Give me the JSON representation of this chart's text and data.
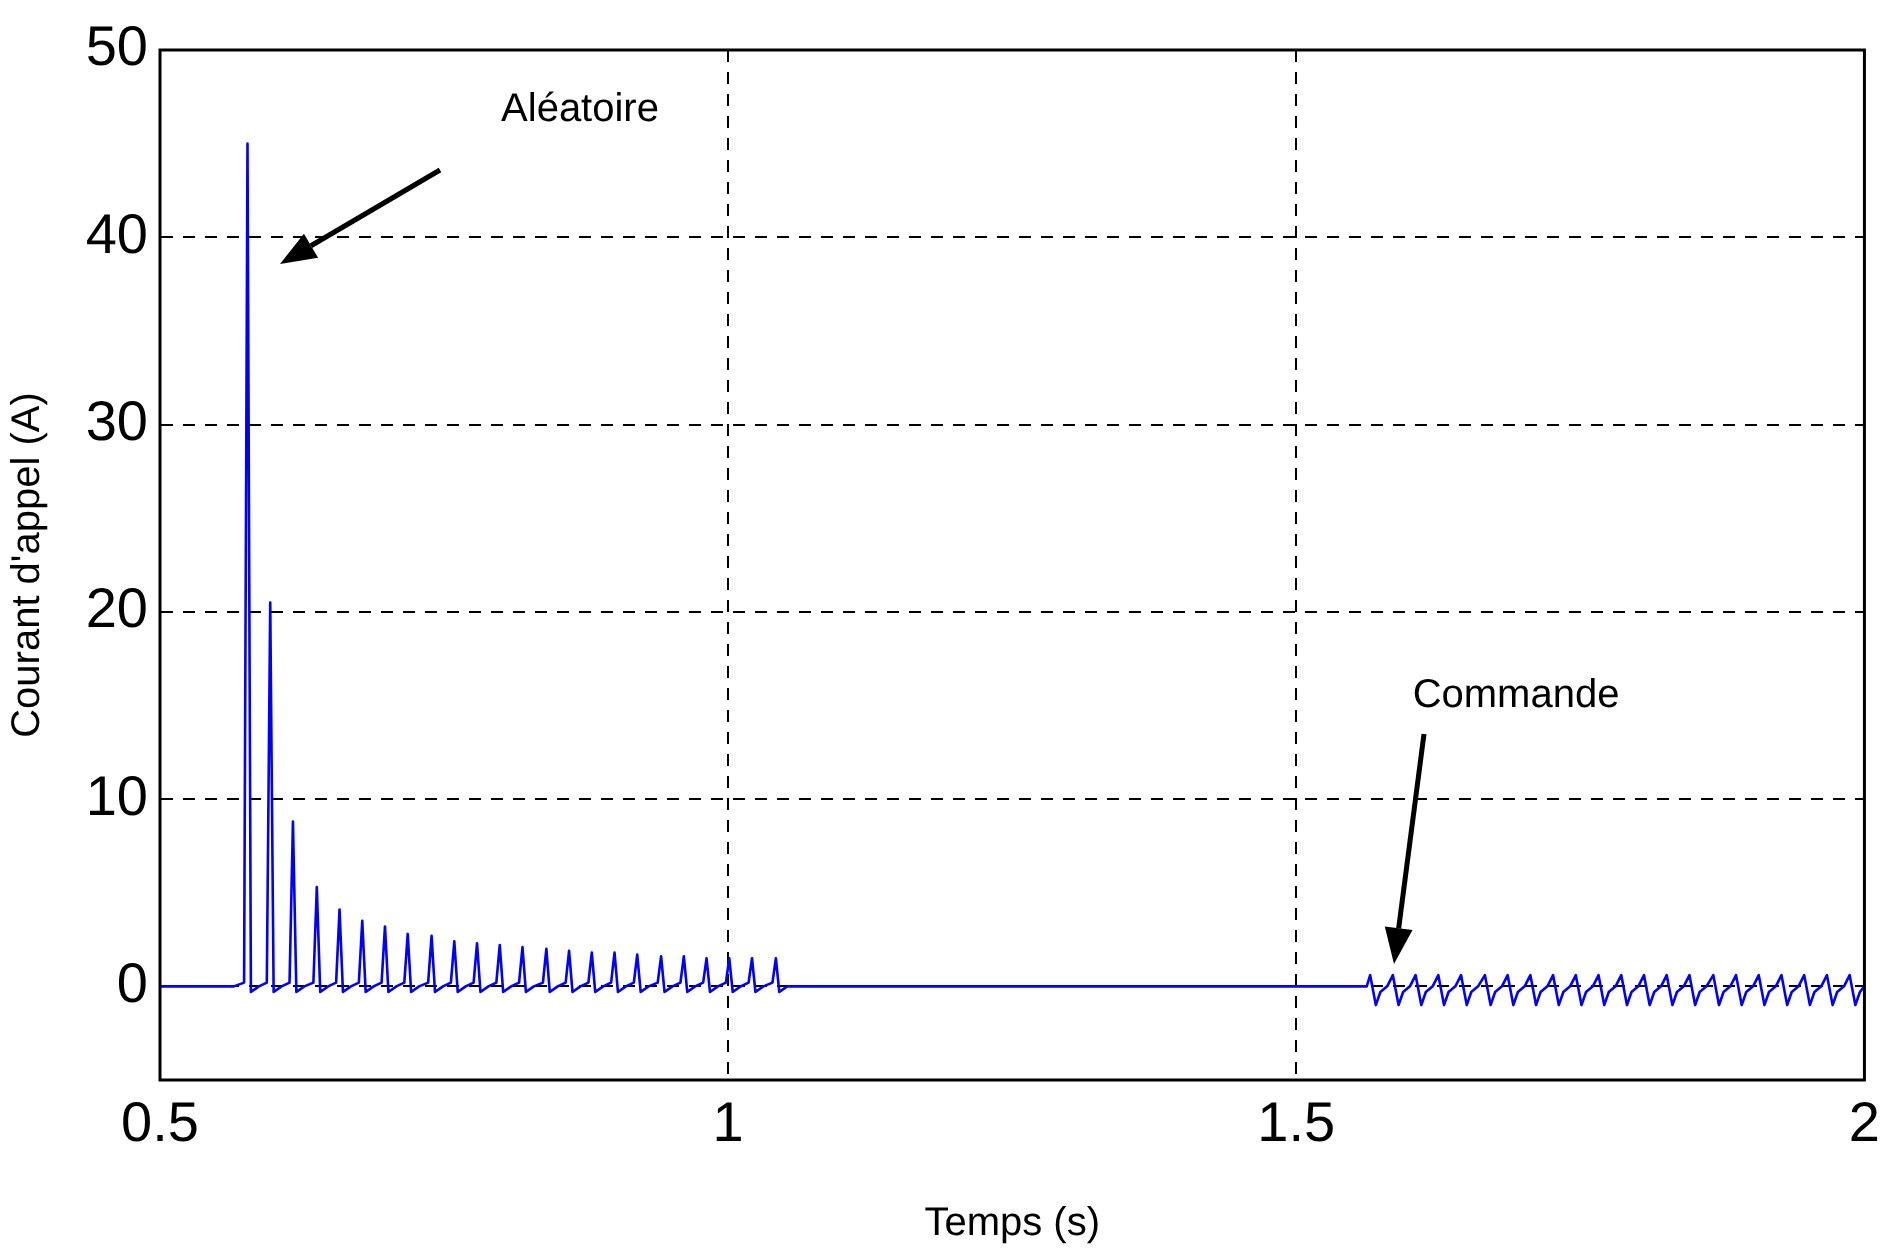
{
  "chart_data": {
    "type": "line",
    "xlabel": "Temps (s)",
    "ylabel": "Courant d'appel (A)",
    "annotations": [
      "Aléatoire",
      "Commande"
    ],
    "xlim": [
      0.5,
      2
    ],
    "xticks": [
      0.5,
      1,
      1.5,
      2
    ],
    "ylim": [
      -5,
      50
    ],
    "yticks": [
      0,
      10,
      20,
      30,
      40,
      50
    ],
    "grid": true,
    "legend": false,
    "marker": "none",
    "line_style": "solid",
    "series": [
      {
        "color": "#0000ff",
        "x": [
          0.5,
          0.565,
          0.574,
          0.577,
          0.58,
          0.587,
          0.594,
          0.597,
          0.6,
          0.607,
          0.614,
          0.617,
          0.62,
          0.627,
          0.635,
          0.638,
          0.641,
          0.648,
          0.655,
          0.658,
          0.661,
          0.668,
          0.675,
          0.678,
          0.681,
          0.688,
          0.695,
          0.698,
          0.701,
          0.708,
          0.715,
          0.718,
          0.721,
          0.728,
          0.736,
          0.739,
          0.742,
          0.749,
          0.756,
          0.759,
          0.762,
          0.769,
          0.776,
          0.779,
          0.782,
          0.789,
          0.796,
          0.799,
          0.802,
          0.809,
          0.816,
          0.819,
          0.822,
          0.829,
          0.837,
          0.84,
          0.843,
          0.85,
          0.857,
          0.86,
          0.863,
          0.87,
          0.877,
          0.88,
          0.883,
          0.89,
          0.897,
          0.9,
          0.903,
          0.91,
          0.917,
          0.92,
          0.923,
          0.93,
          0.938,
          0.941,
          0.944,
          0.951,
          0.958,
          0.961,
          0.964,
          0.971,
          0.978,
          0.981,
          0.984,
          0.991,
          0.998,
          1.001,
          1.004,
          1.011,
          1.018,
          1.021,
          1.024,
          1.031,
          1.039,
          1.042,
          1.045,
          1.052,
          1.562,
          1.565,
          1.57,
          1.574,
          1.58,
          1.585,
          1.59,
          1.594,
          1.6,
          1.605,
          1.61,
          1.614,
          1.62,
          1.625,
          1.63,
          1.634,
          1.64,
          1.645,
          1.65,
          1.654,
          1.66,
          1.666,
          1.671,
          1.675,
          1.681,
          1.686,
          1.691,
          1.695,
          1.701,
          1.706,
          1.711,
          1.715,
          1.721,
          1.726,
          1.731,
          1.735,
          1.741,
          1.746,
          1.751,
          1.755,
          1.761,
          1.766,
          1.771,
          1.775,
          1.781,
          1.786,
          1.791,
          1.795,
          1.801,
          1.806,
          1.811,
          1.815,
          1.821,
          1.826,
          1.831,
          1.835,
          1.841,
          1.846,
          1.851,
          1.855,
          1.861,
          1.867,
          1.872,
          1.876,
          1.882,
          1.887,
          1.892,
          1.896,
          1.902,
          1.907,
          1.912,
          1.916,
          1.922,
          1.927,
          1.932,
          1.936,
          1.942,
          1.947,
          1.952,
          1.956,
          1.962,
          1.967,
          1.972,
          1.976,
          1.982,
          1.987,
          1.992,
          1.996,
          2
        ],
        "values": [
          0,
          0,
          0.2,
          45,
          -0.3,
          0,
          0.2,
          20.5,
          -0.3,
          0,
          0.2,
          8.8,
          -0.3,
          0,
          0.2,
          5.3,
          -0.3,
          0,
          0.2,
          4.1,
          -0.3,
          0,
          0.2,
          3.5,
          -0.3,
          0,
          0.2,
          3.2,
          -0.3,
          0,
          0.2,
          2.8,
          -0.3,
          0,
          0.2,
          2.7,
          -0.3,
          0,
          0.2,
          2.4,
          -0.3,
          0,
          0.2,
          2.3,
          -0.3,
          0,
          0.2,
          2.2,
          -0.3,
          0,
          0.2,
          2.1,
          -0.3,
          0,
          0.2,
          2,
          -0.3,
          0,
          0.2,
          1.9,
          -0.3,
          0,
          0.2,
          1.8,
          -0.3,
          0,
          0.2,
          1.8,
          -0.3,
          0,
          0.2,
          1.7,
          -0.3,
          0,
          0.2,
          1.6,
          -0.3,
          0,
          0.2,
          1.6,
          -0.3,
          0,
          0.2,
          1.5,
          -0.3,
          0,
          0.2,
          1.5,
          -0.3,
          0,
          0.2,
          1.5,
          -0.3,
          0,
          0.2,
          1.5,
          -0.3,
          0,
          0,
          0.6,
          -1,
          -0.3,
          0,
          0.6,
          -1,
          -0.3,
          0,
          0.6,
          -1,
          -0.3,
          0,
          0.6,
          -1,
          -0.3,
          0,
          0.6,
          -1,
          -0.3,
          0,
          0.6,
          -1,
          -0.3,
          0,
          0.6,
          -1,
          -0.3,
          0,
          0.6,
          -1,
          -0.3,
          0,
          0.6,
          -1,
          -0.3,
          0,
          0.6,
          -1,
          -0.3,
          0,
          0.6,
          -1,
          -0.3,
          0,
          0.6,
          -1,
          -0.3,
          0,
          0.6,
          -1,
          -0.3,
          0,
          0.6,
          -1,
          -0.3,
          0,
          0.6,
          -1,
          -0.3,
          0,
          0.6,
          -1,
          -0.3,
          0,
          0.6,
          -1,
          -0.3,
          0,
          0.6,
          -1,
          -0.3,
          0,
          0.6,
          -1,
          -0.3,
          0,
          0.6,
          -1,
          -0.3,
          0,
          0.6,
          -1,
          -0.3,
          0,
          0.6,
          -1,
          -0.3,
          0
        ]
      }
    ]
  }
}
